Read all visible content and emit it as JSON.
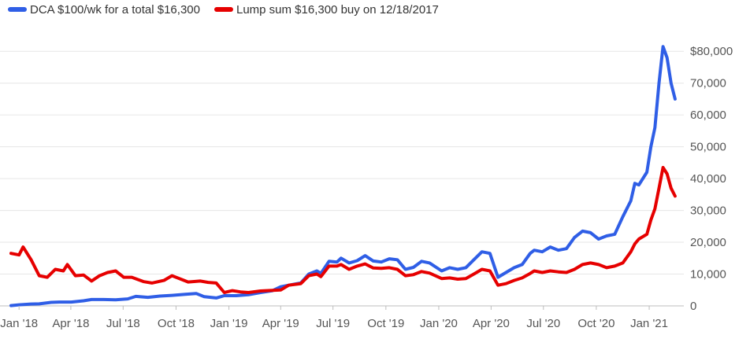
{
  "chart_data": {
    "type": "line",
    "legend_position": "top-left",
    "grid": true,
    "x_range": [
      "2017-12-18",
      "2021-02-22"
    ],
    "ylim": [
      0,
      85000
    ],
    "y_ticks": [
      0,
      10000,
      20000,
      30000,
      40000,
      50000,
      60000,
      70000,
      80000
    ],
    "y_tick_labels": [
      "0",
      "10,000",
      "20,000",
      "30,000",
      "40,000",
      "50,000",
      "60,000",
      "70,000",
      "$80,000"
    ],
    "x_ticks": [
      "2018-01-01",
      "2018-04-01",
      "2018-07-01",
      "2018-10-01",
      "2019-01-01",
      "2019-04-01",
      "2019-07-01",
      "2019-10-01",
      "2020-01-01",
      "2020-04-01",
      "2020-07-01",
      "2020-10-01",
      "2021-01-01"
    ],
    "x_tick_labels": [
      "Jan '18",
      "Apr '18",
      "Jul '18",
      "Oct '18",
      "Jan '19",
      "Apr '19",
      "Jul '19",
      "Oct '19",
      "Jan '20",
      "Apr '20",
      "Jul '20",
      "Oct '20",
      "Jan '21"
    ],
    "series": [
      {
        "name": "DCA $100/wk for a total $16,300",
        "color": "#2f5ee6",
        "points": [
          [
            "2017-12-18",
            100
          ],
          [
            "2018-01-01",
            350
          ],
          [
            "2018-01-22",
            600
          ],
          [
            "2018-02-05",
            650
          ],
          [
            "2018-02-26",
            1100
          ],
          [
            "2018-03-12",
            1200
          ],
          [
            "2018-04-02",
            1200
          ],
          [
            "2018-04-23",
            1600
          ],
          [
            "2018-05-07",
            2000
          ],
          [
            "2018-05-28",
            2000
          ],
          [
            "2018-06-18",
            1900
          ],
          [
            "2018-07-09",
            2200
          ],
          [
            "2018-07-23",
            3000
          ],
          [
            "2018-08-13",
            2700
          ],
          [
            "2018-09-03",
            3100
          ],
          [
            "2018-09-24",
            3300
          ],
          [
            "2018-10-15",
            3600
          ],
          [
            "2018-11-05",
            3900
          ],
          [
            "2018-11-19",
            2900
          ],
          [
            "2018-12-10",
            2500
          ],
          [
            "2018-12-24",
            3200
          ],
          [
            "2019-01-14",
            3200
          ],
          [
            "2019-02-04",
            3500
          ],
          [
            "2019-02-25",
            4200
          ],
          [
            "2019-03-18",
            4800
          ],
          [
            "2019-04-01",
            6000
          ],
          [
            "2019-04-15",
            6500
          ],
          [
            "2019-05-06",
            7200
          ],
          [
            "2019-05-20",
            10000
          ],
          [
            "2019-06-03",
            11000
          ],
          [
            "2019-06-10",
            10200
          ],
          [
            "2019-06-24",
            14000
          ],
          [
            "2019-07-08",
            13800
          ],
          [
            "2019-07-15",
            15000
          ],
          [
            "2019-07-29",
            13500
          ],
          [
            "2019-08-12",
            14200
          ],
          [
            "2019-08-26",
            15800
          ],
          [
            "2019-09-09",
            14100
          ],
          [
            "2019-09-23",
            13800
          ],
          [
            "2019-10-07",
            14800
          ],
          [
            "2019-10-21",
            14500
          ],
          [
            "2019-11-04",
            11500
          ],
          [
            "2019-11-18",
            12100
          ],
          [
            "2019-12-02",
            14000
          ],
          [
            "2019-12-16",
            13500
          ],
          [
            "2020-01-06",
            11000
          ],
          [
            "2020-01-20",
            12000
          ],
          [
            "2020-02-03",
            11500
          ],
          [
            "2020-02-17",
            12000
          ],
          [
            "2020-03-02",
            14500
          ],
          [
            "2020-03-16",
            17000
          ],
          [
            "2020-03-30",
            16500
          ],
          [
            "2020-04-13",
            9000
          ],
          [
            "2020-04-27",
            10500
          ],
          [
            "2020-05-11",
            12000
          ],
          [
            "2020-05-25",
            13000
          ],
          [
            "2020-06-08",
            16500
          ],
          [
            "2020-06-15",
            17500
          ],
          [
            "2020-06-29",
            17000
          ],
          [
            "2020-07-13",
            18500
          ],
          [
            "2020-07-27",
            17500
          ],
          [
            "2020-08-10",
            18000
          ],
          [
            "2020-08-24",
            21500
          ],
          [
            "2020-09-07",
            23500
          ],
          [
            "2020-09-21",
            23000
          ],
          [
            "2020-10-05",
            21000
          ],
          [
            "2020-10-19",
            22000
          ],
          [
            "2020-11-02",
            22500
          ],
          [
            "2020-11-16",
            28000
          ],
          [
            "2020-11-30",
            33000
          ],
          [
            "2020-12-07",
            38500
          ],
          [
            "2020-12-14",
            38000
          ],
          [
            "2020-12-28",
            42000
          ],
          [
            "2021-01-04",
            50000
          ],
          [
            "2021-01-11",
            56000
          ],
          [
            "2021-01-18",
            70000
          ],
          [
            "2021-01-25",
            81500
          ],
          [
            "2021-02-01",
            78000
          ],
          [
            "2021-02-08",
            70000
          ],
          [
            "2021-02-15",
            65000
          ]
        ]
      },
      {
        "name": "Lump sum $16,300 buy on 12/18/2017",
        "color": "#e60000",
        "points": [
          [
            "2017-12-18",
            16500
          ],
          [
            "2018-01-01",
            16000
          ],
          [
            "2018-01-08",
            18500
          ],
          [
            "2018-01-22",
            14500
          ],
          [
            "2018-02-05",
            9500
          ],
          [
            "2018-02-19",
            9000
          ],
          [
            "2018-03-05",
            11500
          ],
          [
            "2018-03-19",
            11000
          ],
          [
            "2018-03-26",
            13000
          ],
          [
            "2018-04-09",
            9500
          ],
          [
            "2018-04-23",
            9700
          ],
          [
            "2018-05-07",
            7800
          ],
          [
            "2018-05-21",
            9500
          ],
          [
            "2018-06-04",
            10500
          ],
          [
            "2018-06-18",
            11000
          ],
          [
            "2018-07-02",
            9000
          ],
          [
            "2018-07-16",
            9000
          ],
          [
            "2018-08-06",
            7600
          ],
          [
            "2018-08-20",
            7200
          ],
          [
            "2018-09-10",
            8000
          ],
          [
            "2018-09-24",
            9500
          ],
          [
            "2018-10-08",
            8500
          ],
          [
            "2018-10-22",
            7500
          ],
          [
            "2018-11-12",
            7800
          ],
          [
            "2018-11-26",
            7400
          ],
          [
            "2018-12-10",
            7200
          ],
          [
            "2018-12-24",
            4200
          ],
          [
            "2019-01-07",
            4800
          ],
          [
            "2019-01-21",
            4400
          ],
          [
            "2019-02-04",
            4200
          ],
          [
            "2019-02-25",
            4700
          ],
          [
            "2019-03-18",
            4900
          ],
          [
            "2019-04-01",
            5000
          ],
          [
            "2019-04-15",
            6500
          ],
          [
            "2019-05-06",
            7000
          ],
          [
            "2019-05-20",
            9500
          ],
          [
            "2019-06-03",
            10000
          ],
          [
            "2019-06-10",
            9200
          ],
          [
            "2019-06-24",
            12500
          ],
          [
            "2019-07-08",
            12500
          ],
          [
            "2019-07-15",
            13000
          ],
          [
            "2019-07-29",
            11500
          ],
          [
            "2019-08-12",
            12500
          ],
          [
            "2019-08-26",
            13200
          ],
          [
            "2019-09-09",
            11900
          ],
          [
            "2019-09-23",
            11800
          ],
          [
            "2019-10-07",
            12000
          ],
          [
            "2019-10-21",
            11500
          ],
          [
            "2019-11-04",
            9500
          ],
          [
            "2019-11-18",
            9800
          ],
          [
            "2019-12-02",
            10800
          ],
          [
            "2019-12-16",
            10300
          ],
          [
            "2020-01-06",
            8600
          ],
          [
            "2020-01-20",
            8800
          ],
          [
            "2020-02-03",
            8400
          ],
          [
            "2020-02-17",
            8600
          ],
          [
            "2020-03-02",
            10000
          ],
          [
            "2020-03-16",
            11500
          ],
          [
            "2020-03-30",
            11000
          ],
          [
            "2020-04-13",
            6500
          ],
          [
            "2020-04-27",
            7000
          ],
          [
            "2020-05-11",
            8000
          ],
          [
            "2020-05-25",
            8800
          ],
          [
            "2020-06-08",
            10200
          ],
          [
            "2020-06-15",
            11000
          ],
          [
            "2020-06-29",
            10500
          ],
          [
            "2020-07-13",
            11000
          ],
          [
            "2020-07-27",
            10700
          ],
          [
            "2020-08-10",
            10500
          ],
          [
            "2020-08-24",
            11500
          ],
          [
            "2020-09-07",
            13000
          ],
          [
            "2020-09-21",
            13500
          ],
          [
            "2020-10-05",
            13000
          ],
          [
            "2020-10-19",
            12000
          ],
          [
            "2020-11-02",
            12500
          ],
          [
            "2020-11-16",
            13500
          ],
          [
            "2020-11-30",
            17000
          ],
          [
            "2020-12-07",
            19500
          ],
          [
            "2020-12-14",
            21000
          ],
          [
            "2020-12-28",
            22500
          ],
          [
            "2021-01-04",
            27000
          ],
          [
            "2021-01-11",
            30500
          ],
          [
            "2021-01-18",
            37000
          ],
          [
            "2021-01-25",
            43500
          ],
          [
            "2021-02-01",
            41500
          ],
          [
            "2021-02-08",
            37000
          ],
          [
            "2021-02-15",
            34500
          ]
        ]
      }
    ]
  }
}
